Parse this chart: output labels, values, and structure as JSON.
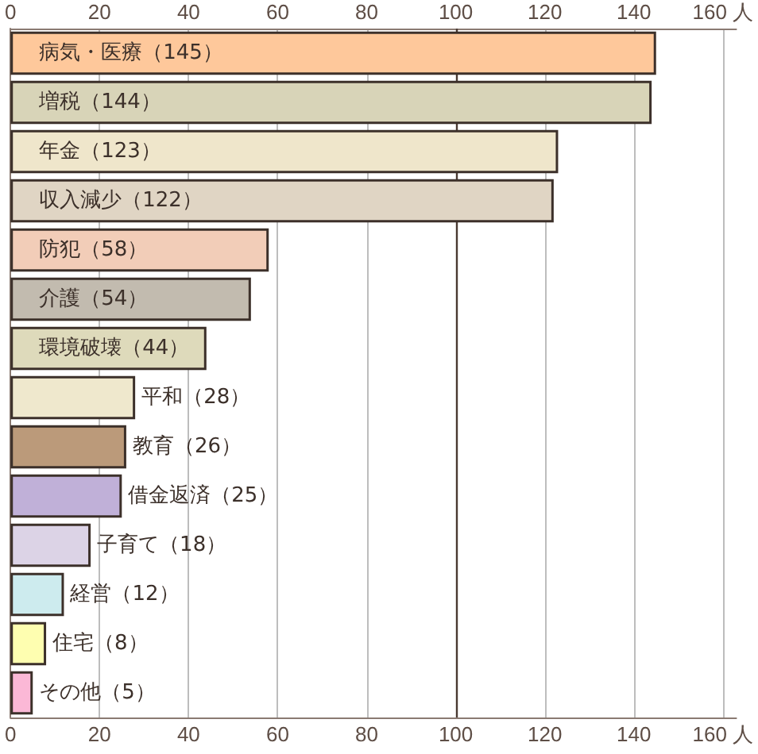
{
  "chart_data": {
    "type": "bar",
    "orientation": "horizontal",
    "categories": [
      null,
      null,
      null,
      null,
      null,
      null,
      null,
      null,
      null,
      null,
      null,
      null,
      null,
      null
    ],
    "values": [
      145,
      144,
      123,
      122,
      58,
      54,
      44,
      28,
      26,
      25,
      18,
      12,
      8,
      5
    ],
    "colors": [
      "#fec89b",
      "#d8d4b8",
      "#efe6cb",
      "#e0d5c4",
      "#f2cdb8",
      "#c2bbaf",
      "#dedabb",
      "#efe8cd",
      "#bb9a7a",
      "#c0b0d8",
      "#dcd3e6",
      "#cdebee",
      "#fefeb0",
      "#fbb8d6"
    ],
    "value_labels": [
      "病気・医療（145）",
      "増税（144）",
      "年金（123）",
      "収入減少（122）",
      "防犯（58）",
      "介護（54）",
      "環境破壊（44）",
      "平和（28）",
      "教育（26）",
      "借金返済（25）",
      "子育て（18）",
      "経営（12）",
      "住宅（8）",
      "その他（5）"
    ],
    "xlim": [
      0,
      163
    ],
    "xticks": [
      0,
      20,
      40,
      60,
      80,
      100,
      120,
      140,
      {
        "value": 160,
        "label": "160 人"
      }
    ],
    "x2lim": [
      0,
      163
    ],
    "x2ticks": [
      0,
      20,
      40,
      60,
      80,
      100,
      120,
      140,
      {
        "value": 160,
        "label": "160 人"
      }
    ],
    "ref_lines": [
      {
        "axis": "x",
        "value": 100,
        "color": "#4a3a32"
      }
    ],
    "grid": "x",
    "tick_labels": "x"
  }
}
